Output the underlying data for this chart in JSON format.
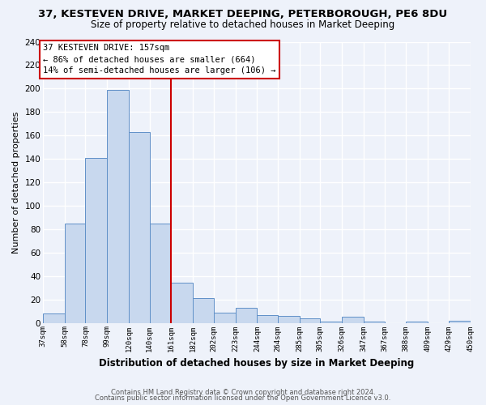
{
  "title": "37, KESTEVEN DRIVE, MARKET DEEPING, PETERBOROUGH, PE6 8DU",
  "subtitle": "Size of property relative to detached houses in Market Deeping",
  "xlabel": "Distribution of detached houses by size in Market Deeping",
  "ylabel": "Number of detached properties",
  "bar_edges": [
    37,
    58,
    78,
    99,
    120,
    140,
    161,
    182,
    202,
    223,
    244,
    264,
    285,
    305,
    326,
    347,
    367,
    388,
    409,
    429,
    450
  ],
  "bar_heights": [
    8,
    85,
    141,
    199,
    163,
    85,
    34,
    21,
    9,
    13,
    7,
    6,
    4,
    1,
    5,
    1,
    0,
    1,
    0,
    2
  ],
  "bar_color": "#c8d8ee",
  "bar_edge_color": "#6090c8",
  "vline_x": 161,
  "vline_color": "#cc0000",
  "ylim": [
    0,
    240
  ],
  "yticks": [
    0,
    20,
    40,
    60,
    80,
    100,
    120,
    140,
    160,
    180,
    200,
    220,
    240
  ],
  "annotation_title": "37 KESTEVEN DRIVE: 157sqm",
  "annotation_line1": "← 86% of detached houses are smaller (664)",
  "annotation_line2": "14% of semi-detached houses are larger (106) →",
  "annotation_box_color": "#ffffff",
  "annotation_box_edge": "#cc0000",
  "footer_line1": "Contains HM Land Registry data © Crown copyright and database right 2024.",
  "footer_line2": "Contains public sector information licensed under the Open Government Licence v3.0.",
  "tick_labels": [
    "37sqm",
    "58sqm",
    "78sqm",
    "99sqm",
    "120sqm",
    "140sqm",
    "161sqm",
    "182sqm",
    "202sqm",
    "223sqm",
    "244sqm",
    "264sqm",
    "285sqm",
    "305sqm",
    "326sqm",
    "347sqm",
    "367sqm",
    "388sqm",
    "409sqm",
    "429sqm",
    "450sqm"
  ],
  "background_color": "#eef2fa",
  "grid_color": "#ffffff"
}
